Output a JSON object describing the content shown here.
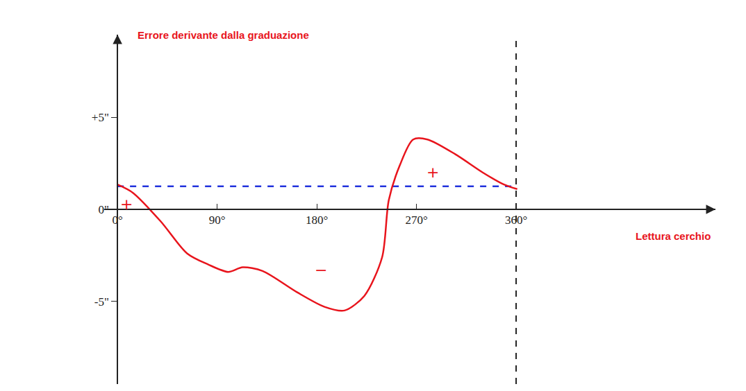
{
  "chart_data": {
    "type": "line",
    "ylabel": "Errore derivante dalla graduazione",
    "xlabel": "Lettura cerchio",
    "x": [
      0,
      14,
      39,
      63,
      82,
      100,
      113,
      131,
      162,
      187,
      205,
      223,
      239,
      245,
      255,
      267,
      280,
      305,
      330,
      349,
      361
    ],
    "values": [
      1.35,
      0.9,
      -0.65,
      -2.4,
      -3.0,
      -3.4,
      -3.15,
      -3.35,
      -4.5,
      -5.3,
      -5.5,
      -4.7,
      -2.6,
      0.5,
      2.4,
      3.8,
      3.8,
      3.0,
      2.0,
      1.35,
      1.1
    ],
    "color": "#e8141c",
    "reference_line": {
      "value": 1.25,
      "from": 0,
      "to": 360,
      "color": "#2233dd",
      "line_style": "dashed"
    },
    "vertical_line": {
      "value": 360,
      "color": "#222222",
      "line_style": "dashed"
    },
    "xlim": [
      -12,
      540
    ],
    "ylim": [
      -9.5,
      9.5
    ],
    "xticks": [
      {
        "value": 0,
        "label": "0°"
      },
      {
        "value": 90,
        "label": "90°"
      },
      {
        "value": 180,
        "label": "180°"
      },
      {
        "value": 270,
        "label": "270°"
      },
      {
        "value": 360,
        "label": "360°"
      }
    ],
    "yticks": [
      {
        "value": -5,
        "label": "-5\""
      },
      {
        "value": 0,
        "label": "0\""
      },
      {
        "value": 5,
        "label": "+5\""
      }
    ],
    "annotations": [
      {
        "text": "+",
        "x": 8,
        "y": 0.3,
        "color": "#e8141c"
      },
      {
        "text": "−",
        "x": 184,
        "y": -3.3,
        "color": "#e8141c"
      },
      {
        "text": "+",
        "x": 285,
        "y": 2.0,
        "color": "#e8141c"
      }
    ],
    "grid": false
  }
}
